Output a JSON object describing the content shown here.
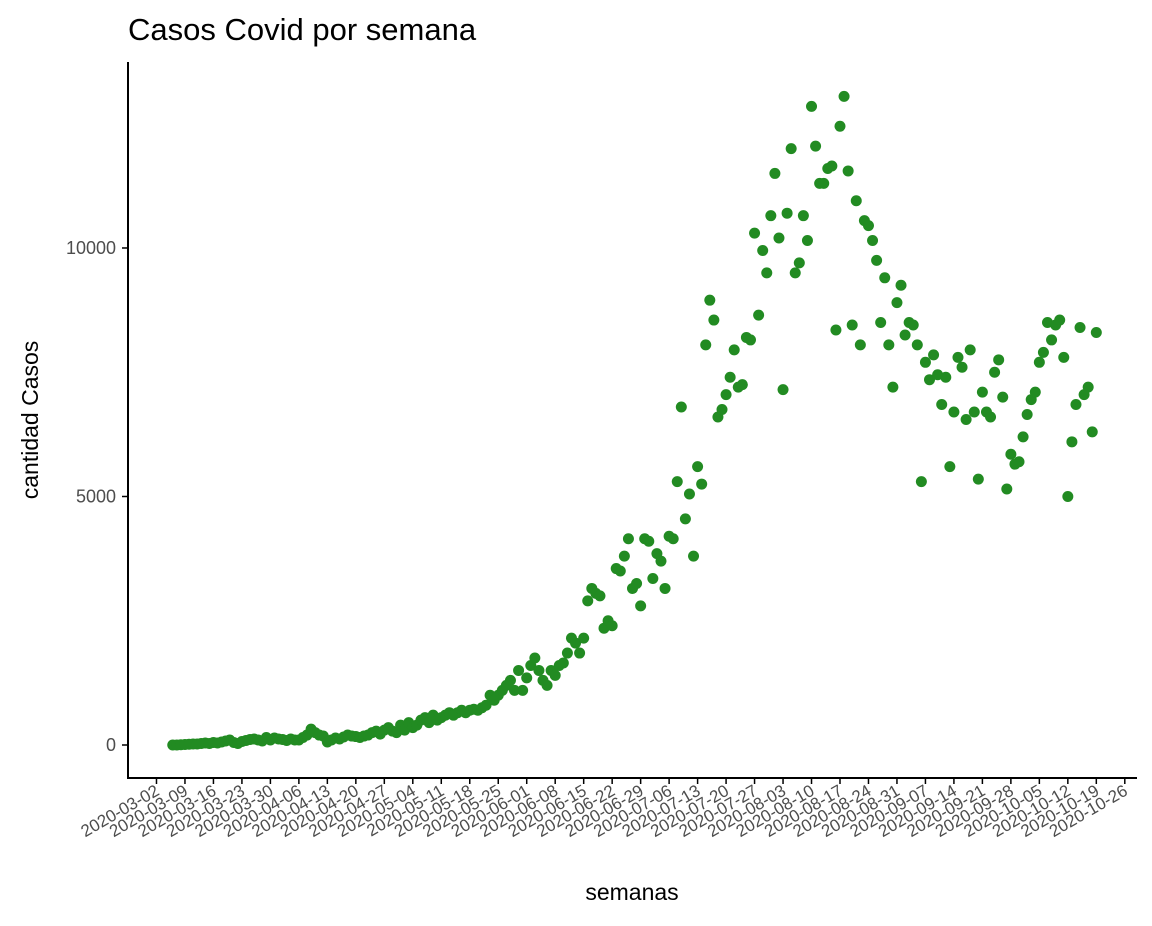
{
  "chart_data": {
    "type": "scatter",
    "title": "Casos Covid por semana",
    "x_label": "semanas",
    "y_label": "cantidad Casos",
    "color": "#228b22",
    "x": [
      "2020-03-06",
      "2020-03-07",
      "2020-03-08",
      "2020-03-09",
      "2020-03-10",
      "2020-03-11",
      "2020-03-12",
      "2020-03-13",
      "2020-03-14",
      "2020-03-15",
      "2020-03-16",
      "2020-03-17",
      "2020-03-18",
      "2020-03-19",
      "2020-03-20",
      "2020-03-21",
      "2020-03-22",
      "2020-03-23",
      "2020-03-24",
      "2020-03-25",
      "2020-03-26",
      "2020-03-27",
      "2020-03-28",
      "2020-03-29",
      "2020-03-30",
      "2020-03-31",
      "2020-04-01",
      "2020-04-02",
      "2020-04-03",
      "2020-04-04",
      "2020-04-05",
      "2020-04-06",
      "2020-04-07",
      "2020-04-08",
      "2020-04-09",
      "2020-04-10",
      "2020-04-11",
      "2020-04-12",
      "2020-04-13",
      "2020-04-14",
      "2020-04-15",
      "2020-04-16",
      "2020-04-17",
      "2020-04-18",
      "2020-04-19",
      "2020-04-20",
      "2020-04-21",
      "2020-04-22",
      "2020-04-23",
      "2020-04-24",
      "2020-04-25",
      "2020-04-26",
      "2020-04-27",
      "2020-04-28",
      "2020-04-29",
      "2020-04-30",
      "2020-05-01",
      "2020-05-02",
      "2020-05-03",
      "2020-05-04",
      "2020-05-05",
      "2020-05-06",
      "2020-05-07",
      "2020-05-08",
      "2020-05-09",
      "2020-05-10",
      "2020-05-11",
      "2020-05-12",
      "2020-05-13",
      "2020-05-14",
      "2020-05-15",
      "2020-05-16",
      "2020-05-17",
      "2020-05-18",
      "2020-05-19",
      "2020-05-20",
      "2020-05-21",
      "2020-05-22",
      "2020-05-23",
      "2020-05-24",
      "2020-05-25",
      "2020-05-26",
      "2020-05-27",
      "2020-05-28",
      "2020-05-29",
      "2020-05-30",
      "2020-05-31",
      "2020-06-01",
      "2020-06-02",
      "2020-06-03",
      "2020-06-04",
      "2020-06-05",
      "2020-06-06",
      "2020-06-07",
      "2020-06-08",
      "2020-06-09",
      "2020-06-10",
      "2020-06-11",
      "2020-06-12",
      "2020-06-13",
      "2020-06-14",
      "2020-06-15",
      "2020-06-16",
      "2020-06-17",
      "2020-06-18",
      "2020-06-19",
      "2020-06-20",
      "2020-06-21",
      "2020-06-22",
      "2020-06-23",
      "2020-06-24",
      "2020-06-25",
      "2020-06-26",
      "2020-06-27",
      "2020-06-28",
      "2020-06-29",
      "2020-06-30",
      "2020-07-01",
      "2020-07-02",
      "2020-07-03",
      "2020-07-04",
      "2020-07-05",
      "2020-07-06",
      "2020-07-07",
      "2020-07-08",
      "2020-07-09",
      "2020-07-10",
      "2020-07-11",
      "2020-07-12",
      "2020-07-13",
      "2020-07-14",
      "2020-07-15",
      "2020-07-16",
      "2020-07-17",
      "2020-07-18",
      "2020-07-19",
      "2020-07-20",
      "2020-07-21",
      "2020-07-22",
      "2020-07-23",
      "2020-07-24",
      "2020-07-25",
      "2020-07-26",
      "2020-07-27",
      "2020-07-28",
      "2020-07-29",
      "2020-07-30",
      "2020-07-31",
      "2020-08-01",
      "2020-08-02",
      "2020-08-03",
      "2020-08-04",
      "2020-08-05",
      "2020-08-06",
      "2020-08-07",
      "2020-08-08",
      "2020-08-09",
      "2020-08-10",
      "2020-08-11",
      "2020-08-12",
      "2020-08-13",
      "2020-08-14",
      "2020-08-15",
      "2020-08-16",
      "2020-08-17",
      "2020-08-18",
      "2020-08-19",
      "2020-08-20",
      "2020-08-21",
      "2020-08-22",
      "2020-08-23",
      "2020-08-24",
      "2020-08-25",
      "2020-08-26",
      "2020-08-27",
      "2020-08-28",
      "2020-08-29",
      "2020-08-30",
      "2020-08-31",
      "2020-09-01",
      "2020-09-02",
      "2020-09-03",
      "2020-09-04",
      "2020-09-05",
      "2020-09-06",
      "2020-09-07",
      "2020-09-08",
      "2020-09-09",
      "2020-09-10",
      "2020-09-11",
      "2020-09-12",
      "2020-09-13",
      "2020-09-14",
      "2020-09-15",
      "2020-09-16",
      "2020-09-17",
      "2020-09-18",
      "2020-09-19",
      "2020-09-20",
      "2020-09-21",
      "2020-09-22",
      "2020-09-23",
      "2020-09-24",
      "2020-09-25",
      "2020-09-26",
      "2020-09-27",
      "2020-09-28",
      "2020-09-29",
      "2020-09-30",
      "2020-10-01",
      "2020-10-02",
      "2020-10-03",
      "2020-10-04",
      "2020-10-05",
      "2020-10-06",
      "2020-10-07",
      "2020-10-08",
      "2020-10-09",
      "2020-10-10",
      "2020-10-11",
      "2020-10-12",
      "2020-10-13",
      "2020-10-14",
      "2020-10-15",
      "2020-10-16",
      "2020-10-17",
      "2020-10-18",
      "2020-10-19"
    ],
    "values": [
      0,
      0,
      5,
      10,
      15,
      20,
      20,
      30,
      40,
      30,
      50,
      40,
      60,
      80,
      100,
      50,
      30,
      70,
      90,
      110,
      120,
      100,
      80,
      150,
      100,
      140,
      120,
      110,
      90,
      120,
      100,
      100,
      150,
      200,
      320,
      250,
      200,
      180,
      60,
      100,
      140,
      120,
      160,
      200,
      180,
      170,
      150,
      180,
      200,
      250,
      280,
      220,
      300,
      350,
      280,
      250,
      400,
      300,
      450,
      350,
      400,
      500,
      550,
      450,
      600,
      500,
      550,
      600,
      650,
      600,
      650,
      700,
      650,
      700,
      720,
      700,
      750,
      800,
      1000,
      900,
      1000,
      1100,
      1200,
      1300,
      1100,
      1500,
      1100,
      1350,
      1600,
      1750,
      1500,
      1300,
      1200,
      1500,
      1400,
      1600,
      1650,
      1850,
      2150,
      2050,
      1850,
      2150,
      2900,
      3150,
      3050,
      3000,
      2350,
      2500,
      2400,
      3550,
      3500,
      3800,
      4150,
      3150,
      3250,
      2800,
      4150,
      4100,
      3350,
      3850,
      3700,
      3150,
      4200,
      4150,
      5300,
      6800,
      4550,
      5050,
      3800,
      5600,
      5250,
      8050,
      8950,
      8550,
      6600,
      6750,
      7050,
      7400,
      7950,
      7200,
      7250,
      8200,
      8150,
      10300,
      8650,
      9950,
      9500,
      10650,
      11500,
      10200,
      7150,
      10700,
      12000,
      9500,
      9700,
      10650,
      10150,
      12850,
      12050,
      11300,
      11300,
      11600,
      11650,
      8350,
      12450,
      13050,
      11550,
      8450,
      10950,
      8050,
      10550,
      10450,
      10150,
      9750,
      8500,
      9400,
      8050,
      7200,
      8900,
      9250,
      8250,
      8500,
      8450,
      8050,
      5300,
      7700,
      7350,
      7850,
      7450,
      6850,
      7400,
      5600,
      6700,
      7800,
      7600,
      6550,
      7950,
      6700,
      5350,
      7100,
      6700,
      6600,
      7500,
      7750,
      7000,
      5150,
      5850,
      5650,
      5700,
      6200,
      6650,
      6950,
      7100,
      7700,
      7900,
      8500,
      8150,
      8450,
      8550,
      7800,
      5000,
      6100,
      6850,
      8400,
      7050,
      7200,
      6300,
      8300
    ],
    "xlim": [
      "2020-02-24",
      "2020-10-29"
    ],
    "xticks": [
      "2020-03-02",
      "2020-03-09",
      "2020-03-16",
      "2020-03-23",
      "2020-03-30",
      "2020-04-06",
      "2020-04-13",
      "2020-04-20",
      "2020-04-27",
      "2020-05-04",
      "2020-05-11",
      "2020-05-18",
      "2020-05-25",
      "2020-06-01",
      "2020-06-08",
      "2020-06-15",
      "2020-06-22",
      "2020-06-29",
      "2020-07-06",
      "2020-07-13",
      "2020-07-20",
      "2020-07-27",
      "2020-08-03",
      "2020-08-10",
      "2020-08-17",
      "2020-08-24",
      "2020-08-31",
      "2020-09-07",
      "2020-09-14",
      "2020-09-21",
      "2020-09-28",
      "2020-10-05",
      "2020-10-12",
      "2020-10-19",
      "2020-10-26"
    ],
    "ylim": [
      -664,
      13722
    ],
    "yticks": [
      0,
      5000,
      10000
    ]
  }
}
